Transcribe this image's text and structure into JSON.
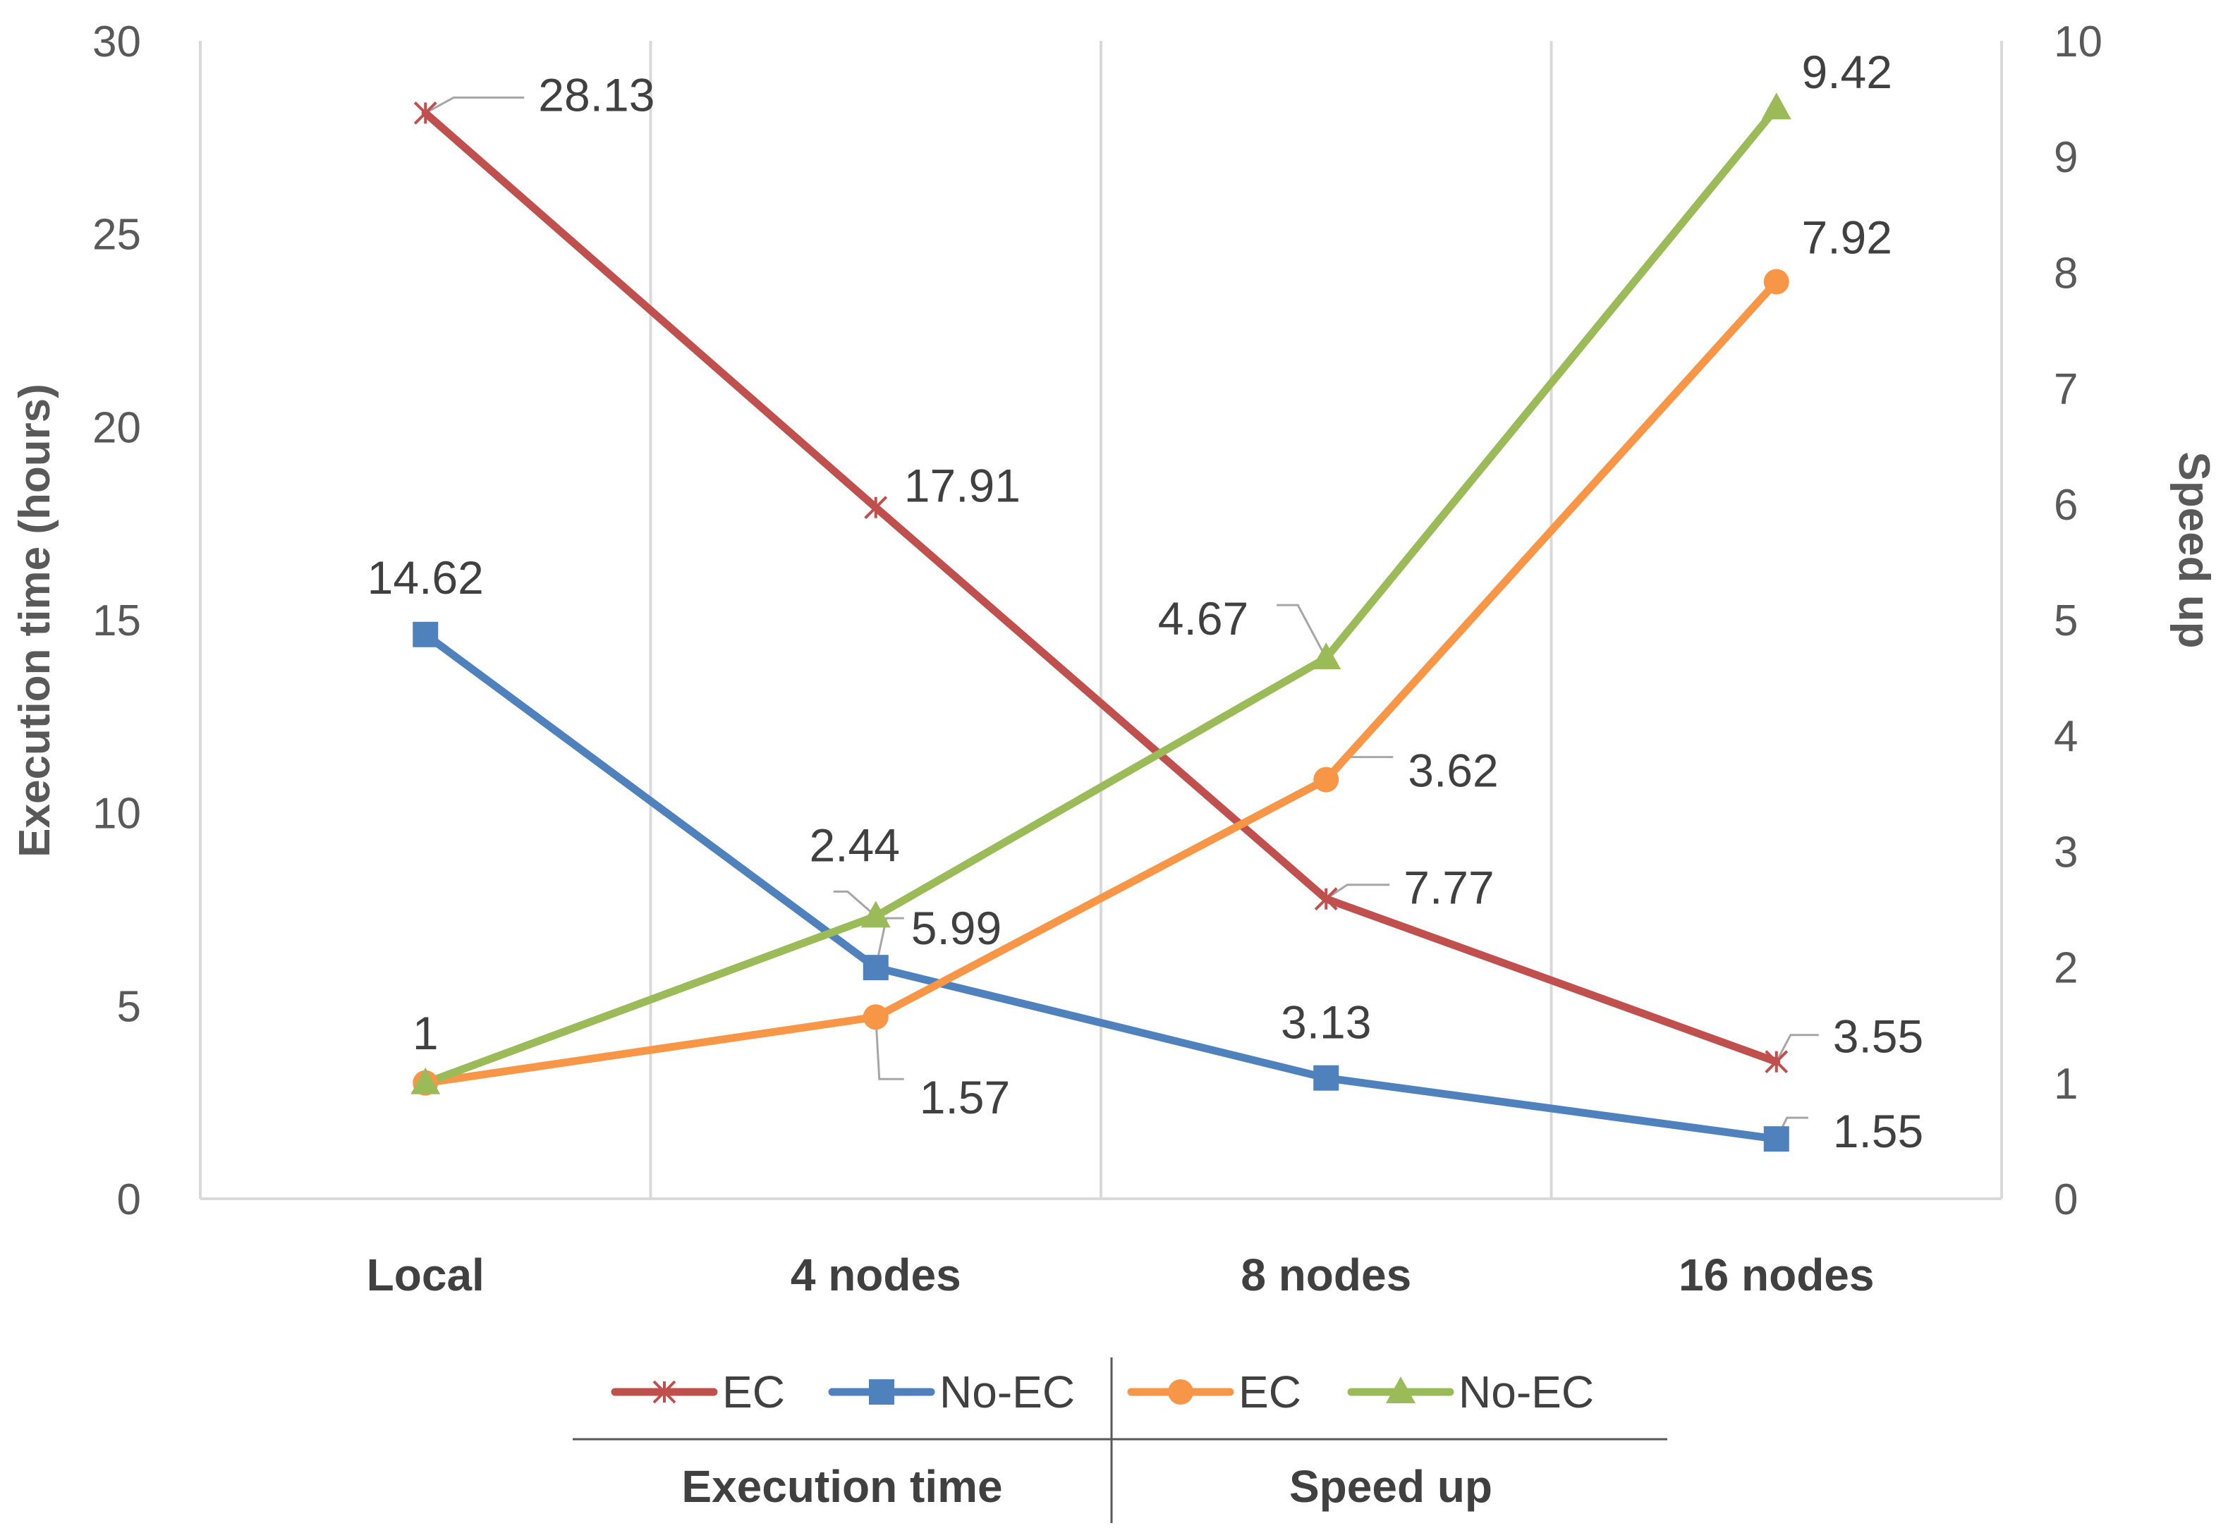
{
  "chart_data": {
    "type": "line",
    "categories": [
      "Local",
      "4 nodes",
      "8 nodes",
      "16 nodes"
    ],
    "left_axis": {
      "title": "Execution time (hours)",
      "min": 0,
      "max": 30,
      "step": 5,
      "ticks": [
        "0",
        "5",
        "10",
        "15",
        "20",
        "25",
        "30"
      ]
    },
    "right_axis": {
      "title": "Speed up",
      "min": 0,
      "max": 10,
      "step": 1,
      "ticks": [
        "0",
        "1",
        "2",
        "3",
        "4",
        "5",
        "6",
        "7",
        "8",
        "9",
        "10"
      ]
    },
    "grid": "vertical category separators",
    "series": [
      {
        "name": "EC",
        "group": "Execution time",
        "axis": "left",
        "marker": "star",
        "color": "#C0504D",
        "values": [
          28.13,
          17.91,
          7.77,
          3.55
        ],
        "labels": [
          "28.13",
          "17.91",
          "7.77",
          "3.55"
        ]
      },
      {
        "name": "No-EC",
        "group": "Execution time",
        "axis": "left",
        "marker": "square",
        "color": "#4F81BD",
        "values": [
          14.62,
          5.99,
          3.13,
          1.55
        ],
        "labels": [
          "14.62",
          "5.99",
          "3.13",
          "1.55"
        ]
      },
      {
        "name": "EC",
        "group": "Speed up",
        "axis": "right",
        "marker": "circle",
        "color": "#F79646",
        "values": [
          1,
          1.57,
          3.62,
          7.92
        ],
        "labels": [
          "1",
          "1.57",
          "3.62",
          "7.92"
        ]
      },
      {
        "name": "No-EC",
        "group": "Speed up",
        "axis": "right",
        "marker": "triangle",
        "color": "#9BBB59",
        "values": [
          1,
          2.44,
          4.67,
          9.42
        ],
        "labels": [
          "",
          "2.44",
          "4.67",
          "9.42"
        ]
      }
    ],
    "legend": {
      "position": "bottom",
      "groups": [
        "Execution time",
        "Speed up"
      ]
    }
  }
}
